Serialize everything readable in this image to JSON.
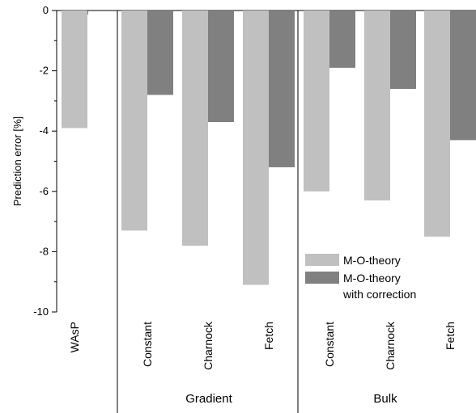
{
  "chart_data": {
    "type": "bar",
    "ylabel": "Prediction error [%]",
    "ylim": [
      -10,
      0
    ],
    "yticks": [
      0,
      -2,
      -4,
      -6,
      -8,
      -10
    ],
    "categories": [
      "WAsP",
      "Constant",
      "Charnock",
      "Fetch",
      "Constant",
      "Charnock",
      "Fetch"
    ],
    "groups": [
      {
        "label": "Gradient",
        "categories": [
          1,
          2,
          3
        ]
      },
      {
        "label": "Bulk",
        "categories": [
          4,
          5,
          6
        ]
      }
    ],
    "series": [
      {
        "name": "M-O-theory",
        "color": "#c0c0c0",
        "values": [
          -3.9,
          -7.3,
          -7.8,
          -9.1,
          -6.0,
          -6.3,
          -7.5
        ]
      },
      {
        "name": "M-O-theory with correction",
        "color": "#808080",
        "values": [
          null,
          -2.8,
          -3.7,
          -5.2,
          -1.9,
          -2.6,
          -4.3
        ]
      }
    ],
    "legend": {
      "position": "lower-right",
      "entries": [
        {
          "lines": [
            "M-O-theory"
          ],
          "color": "#c0c0c0"
        },
        {
          "lines": [
            "M-O-theory",
            "with correction"
          ],
          "color": "#808080"
        }
      ]
    },
    "grid": false
  }
}
